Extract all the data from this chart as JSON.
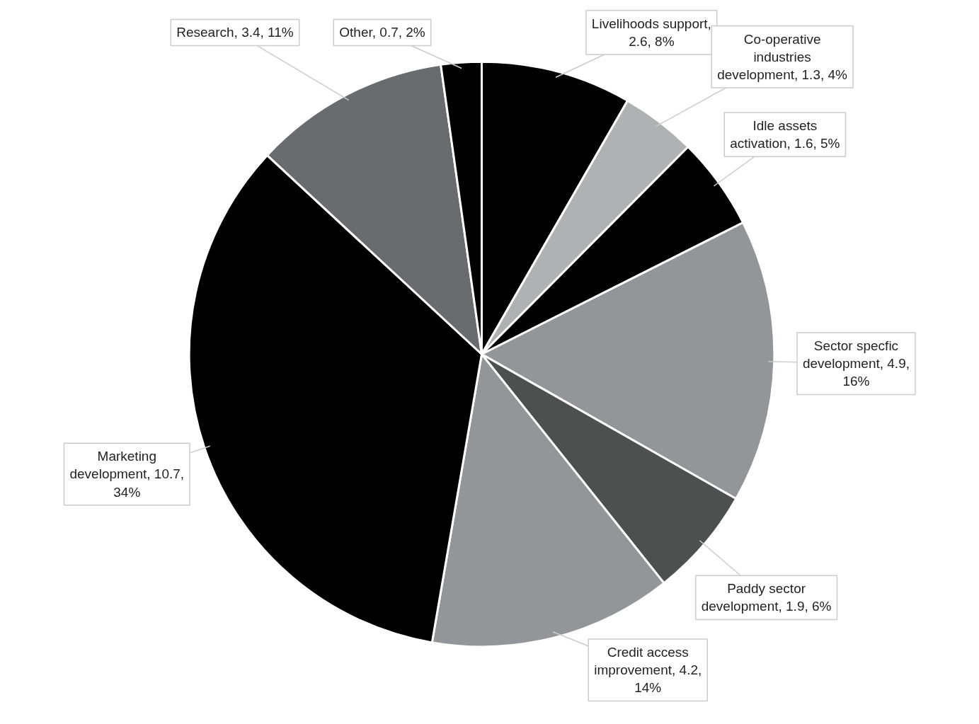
{
  "chart_data": {
    "type": "pie",
    "categories": [
      "Livelihoods support, 2.6, 8%",
      "Co-operative industries development, 1.3, 4%",
      "Idle assets activation, 1.6, 5%",
      "Sector specfic development, 4.9, 16%",
      "Paddy sector development, 1.9, 6%",
      "Credit access improvement, 4.2, 14%",
      "Marketing development, 10.7, 34%",
      "Research, 3.4, 11%",
      "Other, 0.7, 2%"
    ],
    "values": [
      2.6,
      1.3,
      1.6,
      4.9,
      1.9,
      4.2,
      10.7,
      3.4,
      0.7
    ],
    "colors": [
      "#000000",
      "#b0b1b3",
      "#000000",
      "#939699",
      "#4c5150",
      "#939699",
      "#000000",
      "#6a6b6f",
      "#000000"
    ]
  }
}
